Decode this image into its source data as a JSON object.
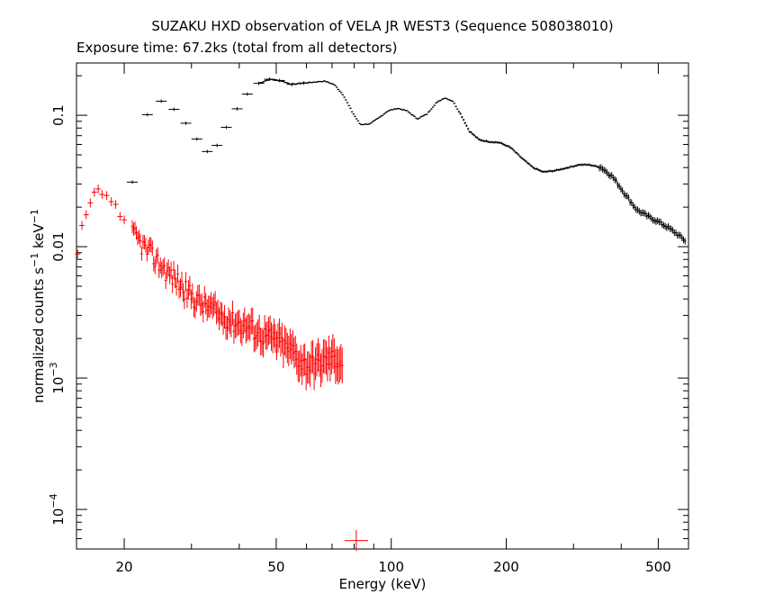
{
  "chart_data": {
    "type": "scatter",
    "title": "SUZAKU HXD observation of VELA JR WEST3 (Sequence 508038010)",
    "subtitle": "Exposure time: 67.2ks (total from all detectors)",
    "xlabel": "Energy (keV)",
    "ylabel": "normalized counts s^-1 keV^-1",
    "xscale": "log",
    "yscale": "log",
    "xlim": [
      15,
      600
    ],
    "ylim": [
      5e-05,
      0.25
    ],
    "x_ticks": [
      {
        "value": 20,
        "label": "20"
      },
      {
        "value": 50,
        "label": "50"
      },
      {
        "value": 100,
        "label": "100"
      },
      {
        "value": 200,
        "label": "200"
      },
      {
        "value": 500,
        "label": "500"
      }
    ],
    "y_ticks": [
      {
        "value": 0.1,
        "label": "0.1"
      },
      {
        "value": 0.01,
        "label": "0.01"
      },
      {
        "value": 0.001,
        "label": "10^-3"
      },
      {
        "value": 0.0001,
        "label": "10^-4"
      }
    ],
    "grid": false,
    "legend": "none",
    "series": [
      {
        "color": "#000000",
        "description_points": [
          [
            21.0,
            0.031
          ],
          [
            23.0,
            0.101
          ],
          [
            25.0,
            0.128
          ],
          [
            27.0,
            0.111
          ],
          [
            29.0,
            0.087
          ],
          [
            31.0,
            0.066
          ],
          [
            33.0,
            0.053
          ],
          [
            35.0,
            0.059
          ],
          [
            37.0,
            0.081
          ],
          [
            39.5,
            0.112
          ],
          [
            42.0,
            0.145
          ],
          [
            45.0,
            0.175
          ],
          [
            48.0,
            0.188
          ],
          [
            51.0,
            0.184
          ],
          [
            55.0,
            0.172
          ],
          [
            59.0,
            0.176
          ],
          [
            63.0,
            0.179
          ],
          [
            67.0,
            0.182
          ],
          [
            71.0,
            0.171
          ],
          [
            75.0,
            0.142
          ],
          [
            79.0,
            0.106
          ],
          [
            83.0,
            0.085
          ],
          [
            88.0,
            0.086
          ],
          [
            93.0,
            0.096
          ],
          [
            98.0,
            0.108
          ],
          [
            104.0,
            0.113
          ],
          [
            110.0,
            0.108
          ],
          [
            117.0,
            0.094
          ],
          [
            124.0,
            0.102
          ],
          [
            131.0,
            0.124
          ],
          [
            138.0,
            0.136
          ],
          [
            145.0,
            0.128
          ],
          [
            152.0,
            0.102
          ],
          [
            160.0,
            0.076
          ],
          [
            170.0,
            0.065
          ],
          [
            180.0,
            0.063
          ],
          [
            192.0,
            0.062
          ],
          [
            205.0,
            0.057
          ],
          [
            220.0,
            0.047
          ],
          [
            235.0,
            0.04
          ],
          [
            250.0,
            0.037
          ],
          [
            270.0,
            0.038
          ],
          [
            290.0,
            0.04
          ],
          [
            310.0,
            0.042
          ],
          [
            330.0,
            0.042
          ],
          [
            355.0,
            0.04
          ],
          [
            380.0,
            0.034
          ],
          [
            410.0,
            0.025
          ],
          [
            440.0,
            0.019
          ],
          [
            470.0,
            0.017
          ],
          [
            500.0,
            0.0155
          ],
          [
            530.0,
            0.014
          ],
          [
            560.0,
            0.0125
          ],
          [
            590.0,
            0.011
          ]
        ]
      },
      {
        "color": "#ff0000",
        "description_points": [
          [
            15.1,
            0.0088
          ],
          [
            15.5,
            0.0145
          ],
          [
            15.9,
            0.0175
          ],
          [
            16.3,
            0.0215
          ],
          [
            16.7,
            0.026
          ],
          [
            17.1,
            0.0275
          ],
          [
            17.5,
            0.025
          ],
          [
            18.0,
            0.0245
          ],
          [
            18.5,
            0.022
          ],
          [
            19.0,
            0.021
          ],
          [
            19.5,
            0.017
          ],
          [
            20.0,
            0.016
          ],
          [
            20.5,
            0.014
          ],
          [
            21.0,
            0.0125
          ],
          [
            21.6,
            0.0115
          ],
          [
            22.2,
            0.0105
          ],
          [
            22.8,
            0.0095
          ],
          [
            23.5,
            0.0088
          ],
          [
            24.2,
            0.008
          ],
          [
            25.0,
            0.0072
          ],
          [
            25.8,
            0.0065
          ],
          [
            26.7,
            0.006
          ],
          [
            27.6,
            0.0055
          ],
          [
            28.6,
            0.0048
          ],
          [
            29.6,
            0.0044
          ],
          [
            30.7,
            0.004
          ],
          [
            31.8,
            0.0037
          ],
          [
            33.0,
            0.0035
          ],
          [
            34.3,
            0.0033
          ],
          [
            35.6,
            0.003
          ],
          [
            37.0,
            0.0029
          ],
          [
            38.5,
            0.0027
          ],
          [
            40.0,
            0.0026
          ],
          [
            41.6,
            0.0025
          ],
          [
            43.3,
            0.0024
          ],
          [
            45.0,
            0.0022
          ],
          [
            47.0,
            0.0021
          ],
          [
            49.0,
            0.002
          ],
          [
            51.0,
            0.0019
          ],
          [
            53.2,
            0.0017
          ],
          [
            55.5,
            0.0016
          ],
          [
            57.8,
            0.00135
          ],
          [
            60.2,
            0.00125
          ],
          [
            62.8,
            0.0013
          ],
          [
            65.5,
            0.00132
          ],
          [
            68.3,
            0.0014
          ],
          [
            71.2,
            0.00142
          ],
          [
            74.0,
            0.00135
          ],
          [
            81.0,
            5.8e-05
          ]
        ]
      }
    ]
  }
}
